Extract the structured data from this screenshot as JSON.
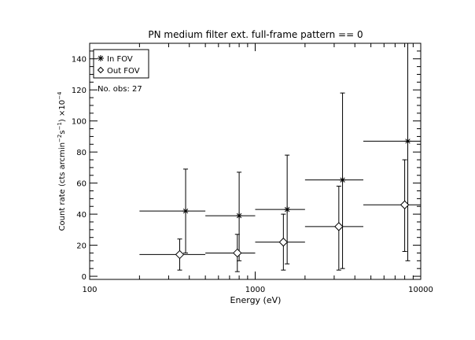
{
  "chart_data": {
    "type": "scatter",
    "title": "PN medium filter ext. full-frame pattern == 0",
    "xlabel": "Energy (eV)",
    "ylabel_main": "Count rate (cts arcmin",
    "ylabel_exp1": "−2",
    "ylabel_mid": "s",
    "ylabel_exp2": "−1",
    "ylabel_mid2": ") ×10",
    "ylabel_exp3": "−4",
    "x_scale": "log",
    "xlim": [
      100,
      10000
    ],
    "ylim": [
      -2,
      150
    ],
    "x_ticks": [
      100,
      1000,
      10000
    ],
    "x_tick_labels": [
      "100",
      "1000",
      "10000"
    ],
    "y_ticks": [
      0,
      20,
      40,
      60,
      80,
      100,
      120,
      140
    ],
    "y_tick_labels": [
      "0",
      "20",
      "40",
      "60",
      "80",
      "100",
      "120",
      "140"
    ],
    "grid": false,
    "legend_position": "top-left",
    "annotation": "No. obs: 27",
    "series": [
      {
        "name": "In FOV",
        "marker": "asterisk",
        "points": [
          {
            "x": 380,
            "y": 42,
            "xlo": 200,
            "xhi": 500,
            "ylo": 15,
            "yhi": 69
          },
          {
            "x": 800,
            "y": 39,
            "xlo": 500,
            "xhi": 1000,
            "ylo": 10,
            "yhi": 67
          },
          {
            "x": 1560,
            "y": 43,
            "xlo": 1000,
            "xhi": 2000,
            "ylo": 8,
            "yhi": 78
          },
          {
            "x": 3370,
            "y": 62,
            "xlo": 2000,
            "xhi": 4500,
            "ylo": 5,
            "yhi": 118
          },
          {
            "x": 8350,
            "y": 87,
            "xlo": 4500,
            "xhi": 10000,
            "ylo": 10,
            "yhi": 150
          }
        ]
      },
      {
        "name": "Out FOV",
        "marker": "diamond",
        "points": [
          {
            "x": 350,
            "y": 14,
            "xlo": 200,
            "xhi": 500,
            "ylo": 4,
            "yhi": 24
          },
          {
            "x": 780,
            "y": 15,
            "xlo": 500,
            "xhi": 1000,
            "ylo": 3,
            "yhi": 27
          },
          {
            "x": 1480,
            "y": 22,
            "xlo": 1000,
            "xhi": 2000,
            "ylo": 4,
            "yhi": 40
          },
          {
            "x": 3200,
            "y": 32,
            "xlo": 2000,
            "xhi": 4500,
            "ylo": 4,
            "yhi": 58
          },
          {
            "x": 8000,
            "y": 46,
            "xlo": 4500,
            "xhi": 10000,
            "ylo": 16,
            "yhi": 75
          }
        ]
      }
    ]
  }
}
